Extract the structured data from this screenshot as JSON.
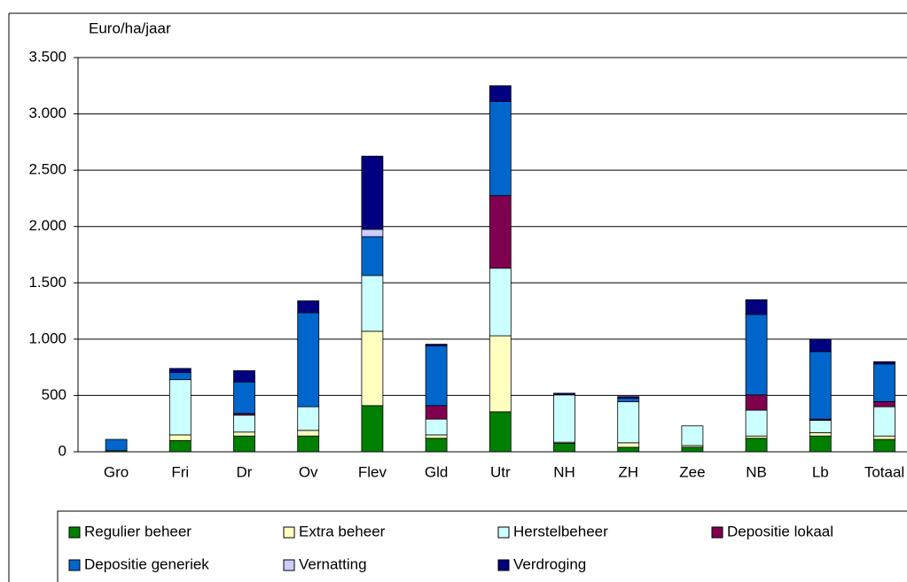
{
  "chart_data": {
    "type": "stacked_bar",
    "y_axis_label": "Euro/ha/jaar",
    "categories": [
      "Gro",
      "Fri",
      "Dr",
      "Ov",
      "Flev",
      "Gld",
      "Utr",
      "NH",
      "ZH",
      "Zee",
      "NB",
      "Lb",
      "Totaal"
    ],
    "series": [
      {
        "name": "Regulier beheer",
        "color": "#008000",
        "values": [
          10,
          100,
          140,
          140,
          410,
          120,
          355,
          75,
          40,
          40,
          120,
          140,
          110
        ]
      },
      {
        "name": "Extra beheer",
        "color": "#ffffc0",
        "values": [
          0,
          50,
          35,
          50,
          660,
          30,
          675,
          10,
          40,
          15,
          20,
          30,
          30
        ]
      },
      {
        "name": "Herstelbeheer",
        "color": "#ccffff",
        "values": [
          0,
          490,
          150,
          210,
          495,
          140,
          600,
          420,
          365,
          175,
          230,
          110,
          260
        ]
      },
      {
        "name": "Depositie lokaal",
        "color": "#800050",
        "values": [
          0,
          0,
          15,
          0,
          0,
          120,
          645,
          0,
          0,
          0,
          135,
          10,
          45
        ]
      },
      {
        "name": "Depositie generiek",
        "color": "#0066cc",
        "values": [
          100,
          65,
          280,
          835,
          345,
          530,
          835,
          0,
          30,
          0,
          715,
          600,
          335
        ]
      },
      {
        "name": "Vernatting",
        "color": "#ccccff",
        "values": [
          0,
          0,
          0,
          0,
          65,
          0,
          0,
          0,
          0,
          0,
          0,
          0,
          0
        ]
      },
      {
        "name": "Verdroging",
        "color": "#000080",
        "values": [
          0,
          35,
          100,
          105,
          650,
          15,
          140,
          15,
          15,
          0,
          130,
          110,
          20
        ]
      }
    ],
    "ylim": [
      0,
      3500
    ],
    "yticks": [
      0,
      500,
      {
        "value": 1000,
        "label": "1.000"
      },
      {
        "value": 1500,
        "label": "1.500"
      },
      {
        "value": 2000,
        "label": "2.000"
      },
      {
        "value": 2500,
        "label": "2.500"
      },
      {
        "value": 3000,
        "label": "3.000"
      },
      {
        "value": 3500,
        "label": "3.500"
      }
    ],
    "grid": true,
    "legend": "bottom"
  }
}
